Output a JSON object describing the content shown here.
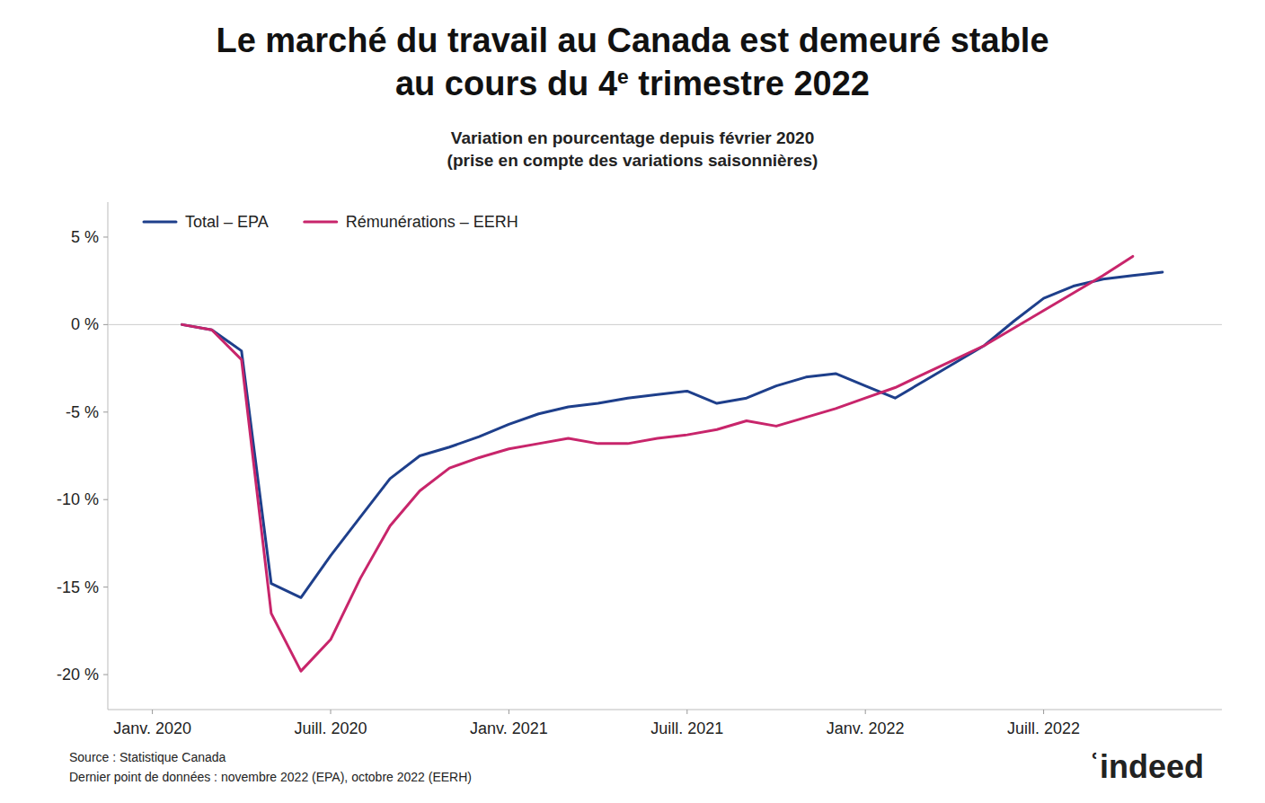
{
  "chart_data": {
    "type": "line",
    "title": [
      "Le marché du travail au Canada est demeuré stable",
      "au cours du 4e trimestre 2022"
    ],
    "subtitle": [
      "Variation en pourcentage depuis février 2020",
      "(prise en compte des variations saisonnières)"
    ],
    "annotations": [
      "Source : Statistique Canada",
      "Dernier point de données : novembre 2022 (EPA), octobre 2022 (EERH)",
      "ʿindeed"
    ],
    "series": [
      {
        "name": "Total – EPA",
        "color": "#1E3F8B",
        "x": [
          1,
          2,
          3,
          4,
          5,
          6,
          7,
          8,
          9,
          10,
          11,
          12,
          13,
          14,
          15,
          16,
          17,
          18,
          19,
          20,
          21,
          22,
          23,
          24,
          25,
          26,
          27,
          28,
          29,
          30,
          31,
          32,
          33,
          34
        ],
        "values": [
          0.0,
          -0.3,
          -1.5,
          -14.8,
          -15.6,
          -13.2,
          -11.0,
          -8.8,
          -7.5,
          -7.0,
          -6.4,
          -5.7,
          -5.1,
          -4.7,
          -4.5,
          -4.2,
          -4.0,
          -3.8,
          -4.5,
          -4.2,
          -3.5,
          -3.0,
          -2.8,
          -3.5,
          -4.2,
          -3.2,
          -2.2,
          -1.2,
          0.2,
          1.5,
          2.2,
          2.6,
          2.8,
          3.0
        ]
      },
      {
        "name": "Rémunérations – EERH",
        "color": "#C8256B",
        "x": [
          1,
          2,
          3,
          4,
          5,
          6,
          7,
          8,
          9,
          10,
          11,
          12,
          13,
          14,
          15,
          16,
          17,
          18,
          19,
          20,
          21,
          22,
          23,
          24,
          25,
          26,
          27,
          28,
          29,
          30,
          31,
          32,
          33
        ],
        "values": [
          0.0,
          -0.3,
          -2.0,
          -16.5,
          -19.8,
          -18.0,
          -14.5,
          -11.5,
          -9.5,
          -8.2,
          -7.6,
          -7.1,
          -6.8,
          -6.5,
          -6.8,
          -6.8,
          -6.5,
          -6.3,
          -6.0,
          -5.5,
          -5.8,
          -5.3,
          -4.8,
          -4.2,
          -3.6,
          -2.8,
          -2.0,
          -1.2,
          -0.2,
          0.8,
          1.8,
          2.8,
          3.9
        ]
      }
    ],
    "xlim": [
      -1.5,
      36
    ],
    "xticks": [
      {
        "value": 0,
        "label": "Janv. 2020"
      },
      {
        "value": 6,
        "label": "Juill. 2020"
      },
      {
        "value": 12,
        "label": "Janv. 2021"
      },
      {
        "value": 18,
        "label": "Juill. 2021"
      },
      {
        "value": 24,
        "label": "Janv. 2022"
      },
      {
        "value": 30,
        "label": "Juill. 2022"
      }
    ],
    "ylim": [
      -22,
      7
    ],
    "yticks": [
      {
        "value": 5,
        "label": "5 %"
      },
      {
        "value": 0,
        "label": "0 %"
      },
      {
        "value": -5,
        "label": "-5 %"
      },
      {
        "value": -10,
        "label": "-10 %"
      },
      {
        "value": -15,
        "label": "-15 %"
      },
      {
        "value": -20,
        "label": "-20 %"
      }
    ],
    "grid": false,
    "legend": "upper left"
  }
}
